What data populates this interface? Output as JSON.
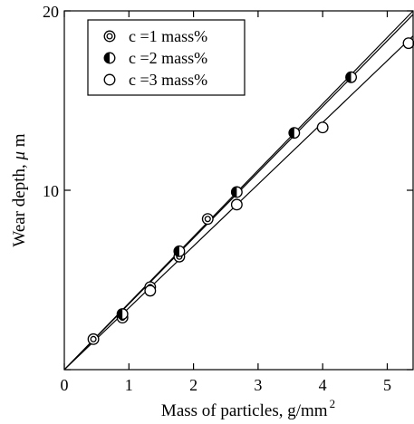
{
  "chart_data": {
    "type": "scatter",
    "title": "",
    "xlabel": "Mass of particles, g/mm",
    "xlabel_sup": "2",
    "ylabel_prefix": "Wear depth, ",
    "ylabel_mu": "μ",
    "ylabel_unit": " m",
    "xlim": [
      0,
      5.4
    ],
    "ylim": [
      0,
      20
    ],
    "grid": false,
    "legend_position": "top-left",
    "x_ticks": [
      {
        "value": 0,
        "label": "0"
      },
      {
        "value": 1,
        "label": "1"
      },
      {
        "value": 2,
        "label": "2"
      },
      {
        "value": 3,
        "label": "3"
      },
      {
        "value": 4,
        "label": "4"
      },
      {
        "value": 5,
        "label": "5"
      }
    ],
    "y_ticks": [
      {
        "value": 0,
        "label": ""
      },
      {
        "value": 10,
        "label": "10"
      },
      {
        "value": 20,
        "label": "20"
      }
    ],
    "series": [
      {
        "name": "c =1 mass%",
        "marker": "double-circle",
        "points": [
          [
            0.45,
            1.7
          ],
          [
            0.9,
            2.9
          ],
          [
            1.33,
            4.6
          ],
          [
            1.78,
            6.3
          ],
          [
            2.22,
            8.4
          ]
        ],
        "fit_line": [
          [
            0,
            0
          ],
          [
            5.4,
            19.8
          ]
        ]
      },
      {
        "name": "c =2 mass%",
        "marker": "half-filled-circle",
        "points": [
          [
            0.9,
            3.1
          ],
          [
            1.78,
            6.6
          ],
          [
            2.67,
            9.9
          ],
          [
            3.56,
            13.2
          ],
          [
            4.44,
            16.3
          ]
        ],
        "fit_line": [
          [
            0,
            0
          ],
          [
            5.4,
            20.0
          ]
        ]
      },
      {
        "name": "c =3 mass%",
        "marker": "open-circle",
        "points": [
          [
            1.33,
            4.4
          ],
          [
            2.67,
            9.2
          ],
          [
            4.0,
            13.5
          ],
          [
            5.33,
            18.2
          ]
        ],
        "fit_line": [
          [
            0,
            0
          ],
          [
            5.4,
            18.6
          ]
        ]
      }
    ]
  }
}
